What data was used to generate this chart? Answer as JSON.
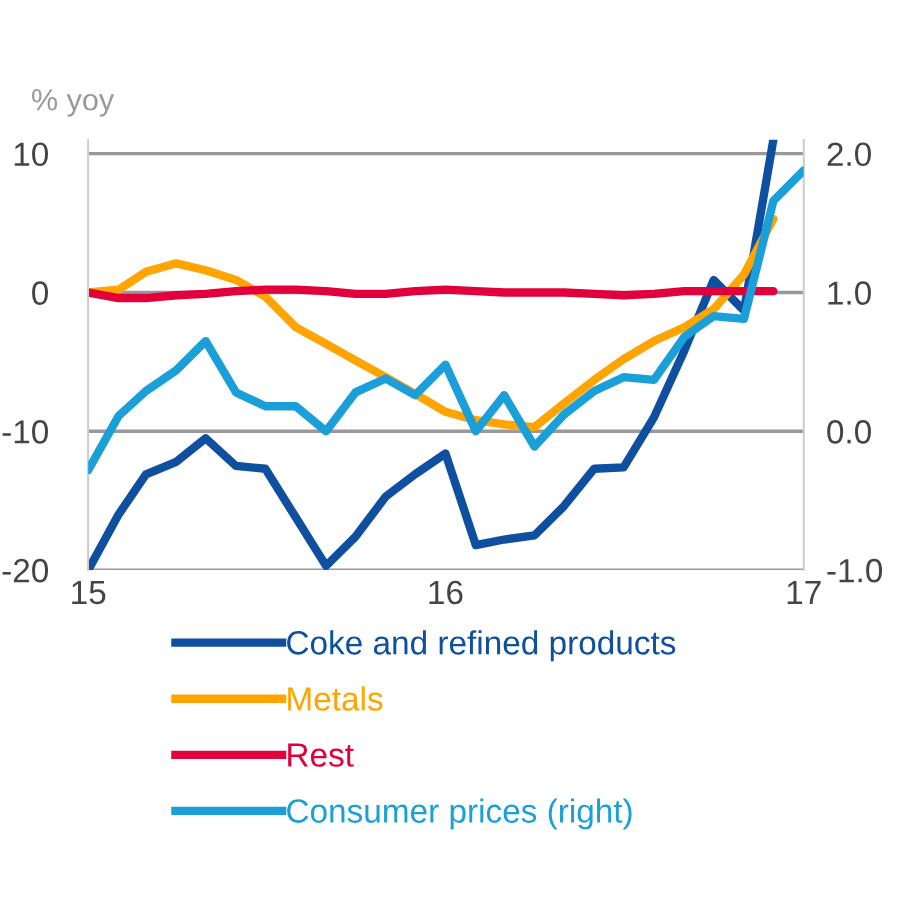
{
  "chart_data": {
    "type": "line",
    "ylabel": "% yoy",
    "legend": "bottom",
    "grid": "y",
    "line_style": "solid",
    "marker": "none",
    "x": [
      "2015-01",
      "2015-02",
      "2015-03",
      "2015-04",
      "2015-05",
      "2015-06",
      "2015-07",
      "2015-08",
      "2015-09",
      "2015-10",
      "2015-11",
      "2015-12",
      "2016-01",
      "2016-02",
      "2016-03",
      "2016-04",
      "2016-05",
      "2016-06",
      "2016-07",
      "2016-08",
      "2016-09",
      "2016-10",
      "2016-11",
      "2016-12"
    ],
    "xlim": [
      "2015-01",
      "2017-01"
    ],
    "xticks": [
      {
        "value": "2015-01",
        "label": "15"
      },
      {
        "value": "2016-01",
        "label": "16"
      },
      {
        "value": "2017-01",
        "label": "17"
      }
    ],
    "ylim": [
      -20,
      11
    ],
    "yticks": [
      -20,
      -10,
      0,
      10
    ],
    "y2lim": [
      -1.0,
      2.1
    ],
    "y2ticks": [
      {
        "value": -1.0,
        "label": "-1.0"
      },
      {
        "value": 0.0,
        "label": "0.0"
      },
      {
        "value": 1.0,
        "label": "1.0"
      },
      {
        "value": 2.0,
        "label": "2.0"
      }
    ],
    "series": [
      {
        "name": "Coke and refined products",
        "color": "#0e4fa0",
        "values": [
          -20,
          -16,
          -13.1,
          -12.2,
          -10.5,
          -12.5,
          -12.7,
          -16.2,
          -19.7,
          -17.6,
          -14.7,
          -13.1,
          -11.6,
          -18.2,
          -17.8,
          -17.5,
          -15.4,
          -12.7,
          -12.6,
          -9.0,
          -4.2,
          0.9,
          -1.3,
          11.0
        ]
      },
      {
        "name": "Metals",
        "color": "#ffa400",
        "values": [
          0,
          0.2,
          1.5,
          2.1,
          1.6,
          0.9,
          -0.3,
          -2.5,
          -3.7,
          -4.9,
          -6.1,
          -7.3,
          -8.6,
          -9.2,
          -9.5,
          -9.7,
          -8.0,
          -6.3,
          -4.8,
          -3.5,
          -2.5,
          -1.2,
          1.3,
          5.3
        ]
      },
      {
        "name": "Rest",
        "color": "#e2003c",
        "values": [
          0,
          -0.4,
          -0.4,
          -0.2,
          -0.1,
          0.1,
          0.2,
          0.2,
          0.1,
          -0.1,
          -0.1,
          0.1,
          0.2,
          0.1,
          0,
          0,
          0,
          -0.1,
          -0.2,
          -0.1,
          0.1,
          0.1,
          0.1,
          0.1
        ]
      },
      {
        "name": "Consumer prices (right)",
        "color": "#1a9fd9",
        "axis": "y2",
        "x": [
          "2015-01",
          "2015-02",
          "2015-03",
          "2015-04",
          "2015-05",
          "2015-06",
          "2015-07",
          "2015-08",
          "2015-09",
          "2015-10",
          "2015-11",
          "2015-12",
          "2016-01",
          "2016-02",
          "2016-03",
          "2016-04",
          "2016-05",
          "2016-06",
          "2016-07",
          "2016-08",
          "2016-09",
          "2016-10",
          "2016-11",
          "2016-12",
          "2017-01"
        ],
        "values": [
          -0.28,
          0.11,
          0.29,
          0.44,
          0.65,
          0.28,
          0.18,
          0.18,
          0.0,
          0.28,
          0.38,
          0.26,
          0.48,
          0.0,
          0.26,
          -0.11,
          0.12,
          0.29,
          0.39,
          0.37,
          0.68,
          0.83,
          0.81,
          1.66,
          1.88
        ]
      }
    ]
  }
}
